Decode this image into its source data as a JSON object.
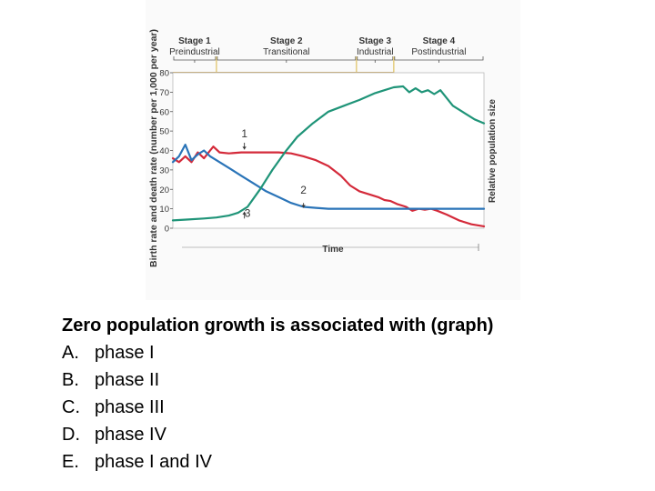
{
  "chart_data": {
    "type": "line",
    "ylabel": "Birth rate and death rate (number per 1,000 per year)",
    "y2label": "Relative population size",
    "xlabel": "Time",
    "ylim": [
      0,
      80
    ],
    "yticks": [
      0,
      10,
      20,
      30,
      40,
      50,
      60,
      70,
      80
    ],
    "xlim": [
      0,
      100
    ],
    "stages": [
      {
        "name": "Stage 1",
        "label": "Preindustrial",
        "start": 0,
        "end": 14
      },
      {
        "name": "Stage 2",
        "label": "Transitional",
        "start": 14,
        "end": 59
      },
      {
        "name": "Stage 3",
        "label": "Industrial",
        "start": 59,
        "end": 71
      },
      {
        "name": "Stage 4",
        "label": "Postindustrial",
        "start": 71,
        "end": 100
      }
    ],
    "series": [
      {
        "color": "#d42a3a",
        "x": [
          0,
          2,
          4,
          6,
          8,
          10,
          12,
          13,
          15,
          18,
          22,
          26,
          30,
          34,
          38,
          42,
          46,
          50,
          54,
          57,
          60,
          64,
          66,
          68,
          70,
          72,
          75,
          77,
          79,
          81,
          83,
          85,
          88,
          92,
          96,
          100
        ],
        "y": [
          36,
          34,
          37,
          34,
          39,
          36,
          40,
          42,
          39,
          38.5,
          39,
          39,
          39,
          39,
          38.5,
          37,
          35,
          32,
          27,
          22,
          19,
          17,
          16,
          14.5,
          14,
          12.5,
          11,
          9,
          10,
          9.5,
          10,
          9,
          7,
          4,
          2,
          1
        ]
      },
      {
        "color": "#2a74b8",
        "x": [
          0,
          2,
          4,
          6,
          8,
          10,
          12,
          14,
          18,
          22,
          26,
          30,
          34,
          38,
          42,
          46,
          50,
          55,
          60,
          70,
          80,
          90,
          100
        ],
        "y": [
          34,
          37,
          43,
          35,
          38,
          40,
          37,
          35,
          31,
          27,
          23,
          19,
          16,
          13,
          11,
          10.5,
          10,
          10,
          10,
          10,
          10,
          10,
          10
        ]
      },
      {
        "color": "#1f9478",
        "x": [
          0,
          5,
          10,
          14,
          18,
          21,
          24,
          28,
          32,
          36,
          40,
          45,
          50,
          55,
          60,
          65,
          68,
          71,
          74,
          76,
          78,
          80,
          82,
          84,
          86,
          88,
          90,
          94,
          97,
          100
        ],
        "y": [
          4,
          4.5,
          5,
          5.5,
          6.5,
          8,
          11,
          20,
          30,
          39,
          47,
          54,
          60,
          63,
          66,
          69.5,
          71,
          72.5,
          73,
          70,
          72,
          70,
          71,
          69,
          71,
          67,
          63,
          59,
          56,
          54
        ]
      }
    ],
    "annotations": [
      {
        "text": "1",
        "x": 23,
        "y": 45
      },
      {
        "text": "2",
        "x": 42,
        "y": 16
      },
      {
        "text": "3",
        "x": 24,
        "y": 4
      }
    ]
  },
  "question": {
    "title": "Zero population growth is associated with (graph)",
    "options": [
      {
        "letter": "A.",
        "text": "phase I"
      },
      {
        "letter": "B.",
        "text": "phase II"
      },
      {
        "letter": "C.",
        "text": "phase III"
      },
      {
        "letter": "D.",
        "text": "phase IV"
      },
      {
        "letter": "E.",
        "text": "phase I and IV"
      }
    ]
  }
}
